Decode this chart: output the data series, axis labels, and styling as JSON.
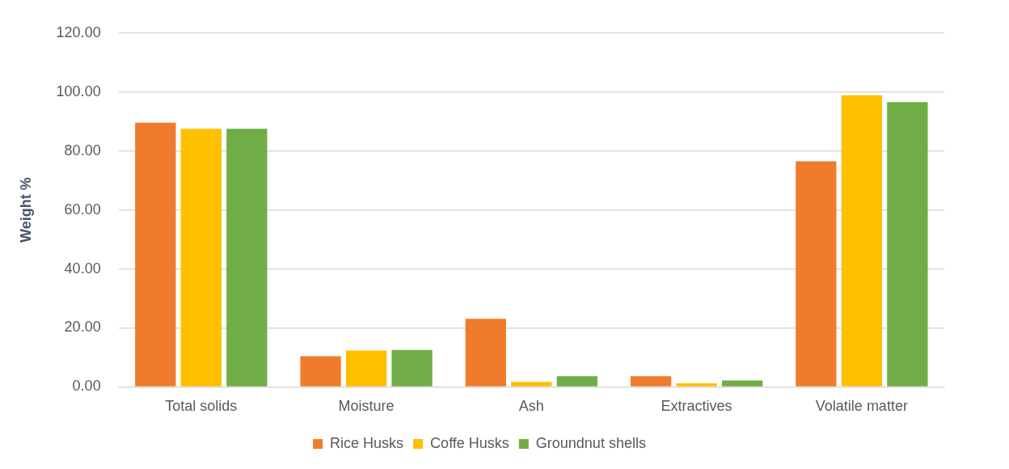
{
  "chart_data": {
    "type": "bar",
    "ylabel": "Weight %",
    "categories": [
      "Total solids",
      "Moisture",
      "Ash",
      "Extractives",
      "Volatile matter"
    ],
    "series": [
      {
        "name": "Rice Husks",
        "color": "#f07b2c",
        "values": [
          89.6,
          10.4,
          23.1,
          3.6,
          76.5
        ]
      },
      {
        "name": "Coffe Husks",
        "color": "#ffc000",
        "values": [
          87.5,
          12.3,
          1.7,
          1.2,
          98.9
        ]
      },
      {
        "name": "Groundnut shells",
        "color": "#70ad47",
        "values": [
          87.5,
          12.5,
          3.6,
          2.2,
          96.6
        ]
      }
    ],
    "ylim": [
      0,
      120
    ],
    "yticks": [
      {
        "value": 0,
        "label": "0.00"
      },
      {
        "value": 20,
        "label": "20.00"
      },
      {
        "value": 40,
        "label": "40.00"
      },
      {
        "value": 60,
        "label": "60.00"
      },
      {
        "value": 80,
        "label": "80.00"
      },
      {
        "value": 100,
        "label": "100.00"
      },
      {
        "value": 120,
        "label": "120.00"
      }
    ],
    "grid": "y",
    "legend": "bottom"
  }
}
